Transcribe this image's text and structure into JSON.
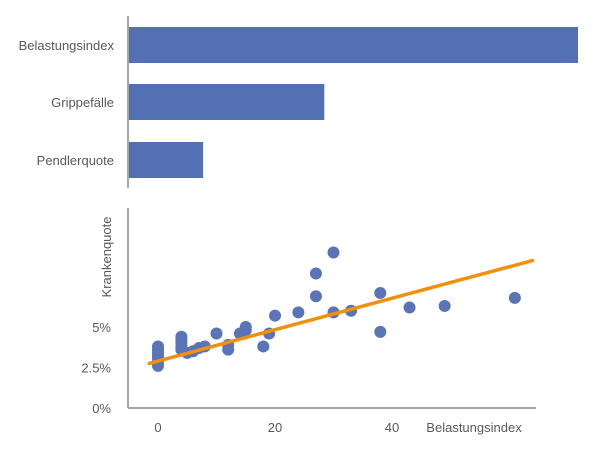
{
  "colors": {
    "bar": "#5470b4",
    "point": "#5b74b8",
    "trend": "#f2900c",
    "axis": "#a6a6a6",
    "text": "#595959"
  },
  "chart_data": [
    {
      "type": "bar",
      "orientation": "horizontal",
      "categories": [
        "Belastungsindex",
        "Grippefälle",
        "Pendlerquote"
      ],
      "values": [
        1.0,
        0.435,
        0.165
      ],
      "xlim": [
        0,
        1
      ],
      "value_axis_visible": false,
      "grid": false
    },
    {
      "type": "scatter",
      "xlabel": "Belastungsindex",
      "ylabel": "Krankenquote",
      "x_ticks": [
        {
          "value": 0,
          "label": "0"
        },
        {
          "value": 20,
          "label": "20"
        },
        {
          "value": 40,
          "label": "40"
        }
      ],
      "y_ticks": [
        {
          "value": 0,
          "label": "0%"
        },
        {
          "value": 2.5,
          "label": "2.5%"
        },
        {
          "value": 5,
          "label": "5%"
        }
      ],
      "xlim": [
        -5,
        65
      ],
      "ylim": [
        0,
        10
      ],
      "grid": false,
      "points": [
        [
          0,
          2.6
        ],
        [
          0,
          2.8
        ],
        [
          0,
          3.0
        ],
        [
          0,
          3.2
        ],
        [
          0,
          3.4
        ],
        [
          0,
          3.6
        ],
        [
          0,
          3.8
        ],
        [
          4,
          3.6
        ],
        [
          4,
          3.8
        ],
        [
          4,
          4.0
        ],
        [
          4,
          4.2
        ],
        [
          4,
          4.4
        ],
        [
          5,
          3.4
        ],
        [
          6,
          3.5
        ],
        [
          7,
          3.7
        ],
        [
          8,
          3.8
        ],
        [
          10,
          4.6
        ],
        [
          12,
          3.6
        ],
        [
          12,
          3.9
        ],
        [
          14,
          4.6
        ],
        [
          15,
          4.8
        ],
        [
          15,
          5.0
        ],
        [
          18,
          3.8
        ],
        [
          19,
          4.6
        ],
        [
          20,
          5.7
        ],
        [
          24,
          5.9
        ],
        [
          27,
          6.9
        ],
        [
          27,
          8.3
        ],
        [
          30,
          9.6
        ],
        [
          30,
          5.9
        ],
        [
          33,
          6.0
        ],
        [
          38,
          7.1
        ],
        [
          38,
          4.7
        ],
        [
          43,
          6.2
        ],
        [
          49,
          6.3
        ],
        [
          61,
          6.8
        ]
      ],
      "trendline": {
        "x": [
          -1.5,
          64
        ],
        "y": [
          2.75,
          9.1
        ]
      }
    }
  ]
}
